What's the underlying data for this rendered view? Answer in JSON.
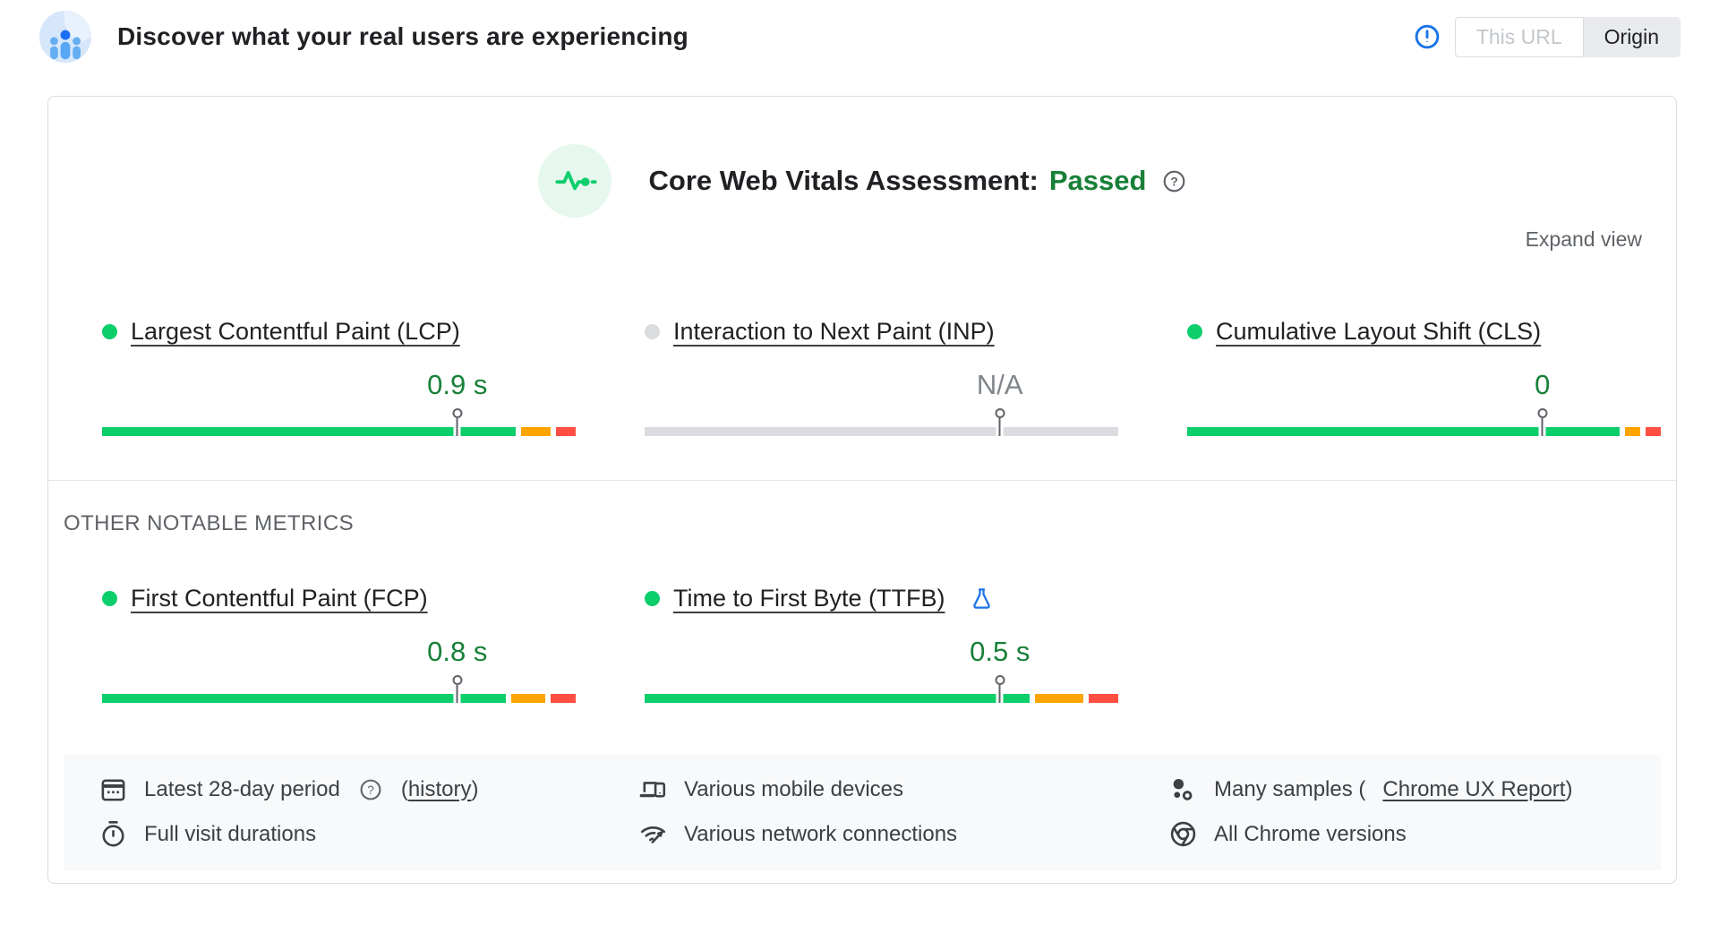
{
  "header": {
    "logo_icon": "users-logo-icon",
    "title": "Discover what your real users are experiencing",
    "alert_icon": "alert-circle-icon",
    "toggle": {
      "this_url_label": "This URL",
      "origin_label": "Origin",
      "selected": "Origin"
    }
  },
  "assessment": {
    "icon": "pulse-icon",
    "title": "Core Web Vitals Assessment:",
    "result": "Passed",
    "help_icon": "help-icon",
    "expand_view_label": "Expand view"
  },
  "colors": {
    "good_bar": "#0cce6b",
    "needs_improvement_bar": "#ffa400",
    "poor_bar": "#ff4e42",
    "na_bar": "#dadce0",
    "good_text": "#188038",
    "na_text": "#80868b",
    "accent_blue": "#1a73e8"
  },
  "metrics": {
    "core": [
      {
        "id": "lcp",
        "label": "Largest Contentful Paint (LCP)",
        "value": "0.9 s",
        "status": "good",
        "p75_percent": 75,
        "distribution_percent": {
          "good": 88,
          "needs_improvement": 7,
          "poor": 5
        }
      },
      {
        "id": "inp",
        "label": "Interaction to Next Paint (INP)",
        "value": "N/A",
        "status": "na",
        "p75_percent": 75,
        "distribution_percent": null
      },
      {
        "id": "cls",
        "label": "Cumulative Layout Shift (CLS)",
        "value": "0",
        "status": "good",
        "p75_percent": 75,
        "distribution_percent": {
          "good": 92,
          "needs_improvement": 4,
          "poor": 4
        }
      }
    ],
    "other_heading": "OTHER NOTABLE METRICS",
    "other": [
      {
        "id": "fcp",
        "label": "First Contentful Paint (FCP)",
        "value": "0.8 s",
        "status": "good",
        "p75_percent": 75,
        "distribution_percent": {
          "good": 86,
          "needs_improvement": 8,
          "poor": 6
        }
      },
      {
        "id": "ttfb",
        "label": "Time to First Byte (TTFB)",
        "value": "0.5 s",
        "status": "good",
        "experimental": true,
        "experimental_icon": "flask-icon",
        "p75_percent": 75,
        "distribution_percent": {
          "good": 82,
          "needs_improvement": 11,
          "poor": 7
        }
      }
    ]
  },
  "data_sources": [
    [
      {
        "icon": "calendar-icon",
        "text": "Latest 28-day period",
        "help_icon": "help-icon",
        "link_prefix": "(",
        "link": "history",
        "link_suffix": ")"
      },
      {
        "icon": "stopwatch-icon",
        "text": "Full visit durations"
      }
    ],
    [
      {
        "icon": "devices-icon",
        "text": "Various mobile devices"
      },
      {
        "icon": "network-icon",
        "text": "Various network connections"
      }
    ],
    [
      {
        "icon": "samples-icon",
        "text": "Many samples (",
        "link": "Chrome UX Report",
        "link_suffix": ")"
      },
      {
        "icon": "chrome-icon",
        "text": "All Chrome versions"
      }
    ]
  ]
}
